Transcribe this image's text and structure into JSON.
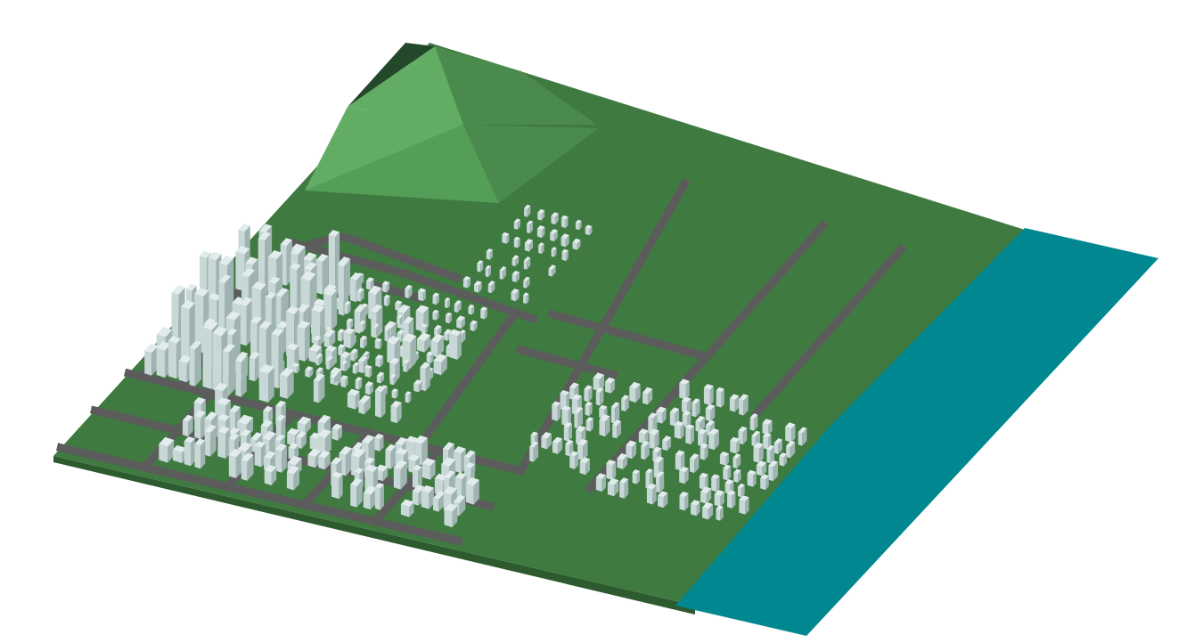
{
  "scene": {
    "description_visible_text": "",
    "colors": {
      "background": "#ffffff",
      "ground": "#3f7a40",
      "ground_edge": "#2d5a2f",
      "road": "#5c5c5c",
      "water": "#00878f",
      "mountain_light": "#62ad63",
      "mountain_mid": "#559e57",
      "mountain_dark": "#4a8a4c",
      "mountain_shadow": "#24492a",
      "building_top": "#e2ecec",
      "building_left": "#c7d8d7",
      "building_right": "#9fb3b1"
    },
    "districts": [
      {
        "name": "downtown",
        "density": "high",
        "building_height": "tall"
      },
      {
        "name": "midrise-grid",
        "density": "medium",
        "building_height": "medium"
      },
      {
        "name": "suburb-west",
        "density": "medium",
        "building_height": "low"
      },
      {
        "name": "suburb-north",
        "density": "medium",
        "building_height": "low"
      },
      {
        "name": "suburb-east",
        "density": "medium",
        "building_height": "low"
      }
    ],
    "features": [
      "mountain",
      "water",
      "road-network",
      "buildings"
    ]
  }
}
